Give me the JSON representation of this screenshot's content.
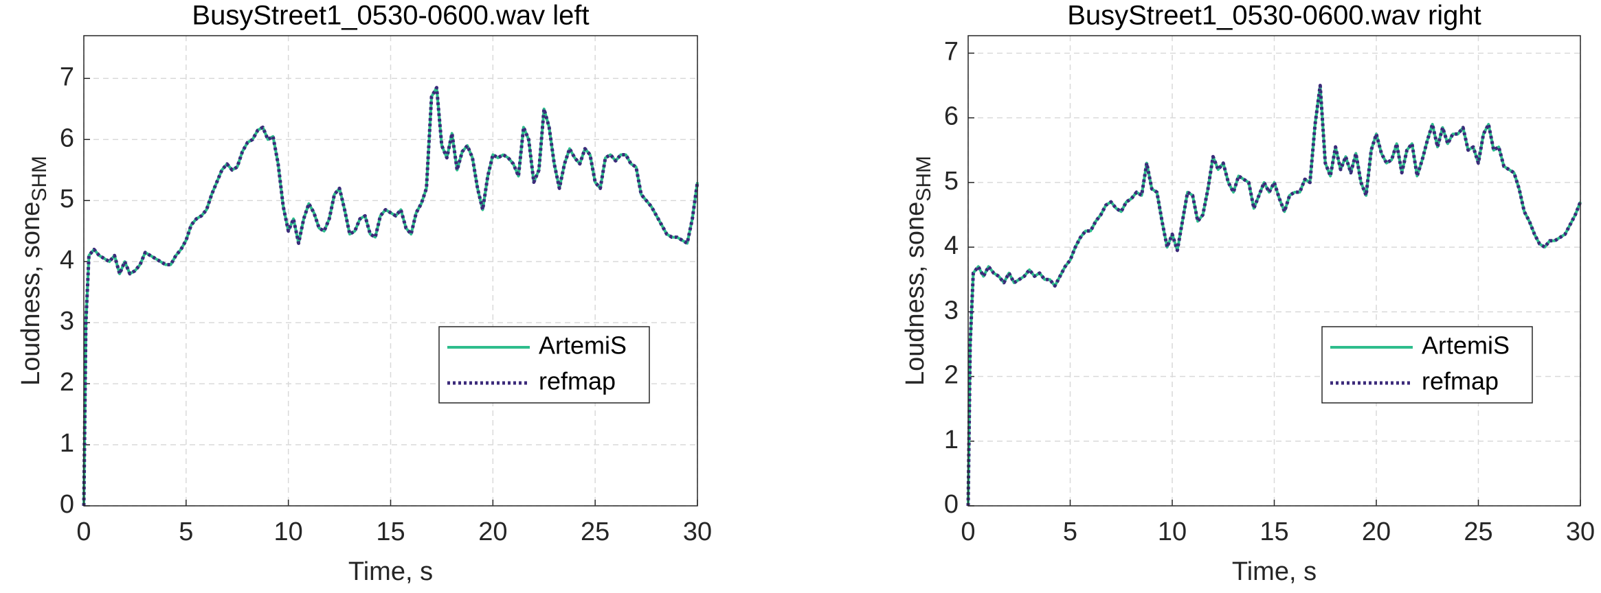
{
  "chart_data": [
    {
      "type": "line",
      "title": "BusyStreet1_0530-0600.wav left",
      "xlabel": "Time, s",
      "ylabel": "Loudness, sone",
      "ylabel_subscript": "SHM",
      "x": [
        0,
        0.1,
        0.25,
        0.5,
        0.75,
        1,
        1.25,
        1.5,
        1.75,
        2,
        2.25,
        2.5,
        2.75,
        3,
        3.25,
        3.5,
        3.75,
        4,
        4.25,
        4.5,
        4.75,
        5,
        5.25,
        5.5,
        5.75,
        6,
        6.25,
        6.5,
        6.75,
        7,
        7.25,
        7.5,
        7.75,
        8,
        8.25,
        8.5,
        8.75,
        9,
        9.25,
        9.5,
        9.75,
        10,
        10.25,
        10.5,
        10.75,
        11,
        11.25,
        11.5,
        11.75,
        12,
        12.25,
        12.5,
        12.75,
        13,
        13.25,
        13.5,
        13.75,
        14,
        14.25,
        14.5,
        14.75,
        15,
        15.25,
        15.5,
        15.75,
        16,
        16.25,
        16.5,
        16.75,
        17,
        17.25,
        17.5,
        17.75,
        18,
        18.25,
        18.5,
        18.75,
        19,
        19.25,
        19.5,
        19.75,
        20,
        20.25,
        20.5,
        20.75,
        21,
        21.25,
        21.5,
        21.75,
        22,
        22.25,
        22.5,
        22.75,
        23,
        23.25,
        23.5,
        23.75,
        24,
        24.25,
        24.5,
        24.75,
        25,
        25.25,
        25.5,
        25.75,
        26,
        26.25,
        26.5,
        26.75,
        27,
        27.25,
        27.5,
        27.75,
        28,
        28.25,
        28.5,
        28.75,
        29,
        29.25,
        29.5,
        29.75,
        30
      ],
      "series": [
        {
          "name": "ArtemiS",
          "color": "#2ebd8c",
          "line_style": "solid",
          "values": [
            0,
            3.0,
            4.1,
            4.2,
            4.1,
            4.05,
            4.0,
            4.1,
            3.8,
            4.0,
            3.8,
            3.85,
            3.95,
            4.15,
            4.1,
            4.05,
            4.0,
            3.95,
            3.95,
            4.1,
            4.2,
            4.35,
            4.6,
            4.7,
            4.75,
            4.85,
            5.1,
            5.3,
            5.5,
            5.6,
            5.5,
            5.55,
            5.8,
            5.95,
            6.0,
            6.15,
            6.2,
            6.0,
            6.05,
            5.6,
            4.9,
            4.5,
            4.7,
            4.3,
            4.7,
            4.95,
            4.8,
            4.55,
            4.5,
            4.7,
            5.1,
            5.2,
            4.85,
            4.45,
            4.5,
            4.7,
            4.75,
            4.45,
            4.4,
            4.75,
            4.85,
            4.8,
            4.75,
            4.85,
            4.55,
            4.45,
            4.8,
            4.95,
            5.2,
            6.7,
            6.85,
            5.9,
            5.7,
            6.1,
            5.5,
            5.8,
            5.9,
            5.7,
            5.2,
            4.85,
            5.4,
            5.75,
            5.7,
            5.75,
            5.7,
            5.6,
            5.4,
            6.2,
            6.0,
            5.3,
            5.5,
            6.5,
            6.2,
            5.6,
            5.2,
            5.6,
            5.85,
            5.7,
            5.6,
            5.85,
            5.75,
            5.3,
            5.2,
            5.7,
            5.75,
            5.65,
            5.75,
            5.75,
            5.6,
            5.55,
            5.1,
            5.0,
            4.9,
            4.75,
            4.6,
            4.45,
            4.4,
            4.4,
            4.35,
            4.3,
            4.7,
            5.3
          ]
        },
        {
          "name": "refmap",
          "color": "#3b2a7a",
          "line_style": "dotted",
          "values": [
            0,
            3.0,
            4.1,
            4.2,
            4.1,
            4.05,
            4.0,
            4.1,
            3.8,
            4.0,
            3.8,
            3.85,
            3.95,
            4.15,
            4.1,
            4.05,
            4.0,
            3.95,
            3.95,
            4.1,
            4.2,
            4.35,
            4.6,
            4.7,
            4.75,
            4.85,
            5.1,
            5.3,
            5.5,
            5.6,
            5.5,
            5.55,
            5.8,
            5.95,
            6.0,
            6.15,
            6.2,
            6.0,
            6.05,
            5.6,
            4.9,
            4.5,
            4.7,
            4.3,
            4.7,
            4.95,
            4.8,
            4.55,
            4.5,
            4.7,
            5.1,
            5.2,
            4.85,
            4.45,
            4.5,
            4.7,
            4.75,
            4.45,
            4.4,
            4.75,
            4.85,
            4.8,
            4.75,
            4.85,
            4.55,
            4.45,
            4.8,
            4.95,
            5.2,
            6.7,
            6.85,
            5.9,
            5.7,
            6.1,
            5.5,
            5.8,
            5.9,
            5.7,
            5.2,
            4.85,
            5.4,
            5.75,
            5.7,
            5.75,
            5.7,
            5.6,
            5.4,
            6.2,
            6.0,
            5.3,
            5.5,
            6.5,
            6.2,
            5.6,
            5.2,
            5.6,
            5.85,
            5.7,
            5.6,
            5.85,
            5.75,
            5.3,
            5.2,
            5.7,
            5.75,
            5.65,
            5.75,
            5.75,
            5.6,
            5.55,
            5.1,
            5.0,
            4.9,
            4.75,
            4.6,
            4.45,
            4.4,
            4.4,
            4.35,
            4.3,
            4.7,
            5.3
          ]
        }
      ],
      "xlim": [
        0,
        30
      ],
      "xticks": [
        0,
        5,
        10,
        15,
        20,
        25,
        30
      ],
      "ylim": [
        0,
        7.7
      ],
      "yticks": [
        0,
        1,
        2,
        3,
        4,
        5,
        6,
        7
      ],
      "grid": true,
      "legend": "lower right"
    },
    {
      "type": "line",
      "title": "BusyStreet1_0530-0600.wav right",
      "xlabel": "Time, s",
      "ylabel": "Loudness, sone",
      "ylabel_subscript": "SHM",
      "x": [
        0,
        0.1,
        0.25,
        0.5,
        0.75,
        1,
        1.25,
        1.5,
        1.75,
        2,
        2.25,
        2.5,
        2.75,
        3,
        3.25,
        3.5,
        3.75,
        4,
        4.25,
        4.5,
        4.75,
        5,
        5.25,
        5.5,
        5.75,
        6,
        6.25,
        6.5,
        6.75,
        7,
        7.25,
        7.5,
        7.75,
        8,
        8.25,
        8.5,
        8.75,
        9,
        9.25,
        9.5,
        9.75,
        10,
        10.25,
        10.5,
        10.75,
        11,
        11.25,
        11.5,
        11.75,
        12,
        12.25,
        12.5,
        12.75,
        13,
        13.25,
        13.5,
        13.75,
        14,
        14.25,
        14.5,
        14.75,
        15,
        15.25,
        15.5,
        15.75,
        16,
        16.25,
        16.5,
        16.75,
        17,
        17.25,
        17.5,
        17.75,
        18,
        18.25,
        18.5,
        18.75,
        19,
        19.25,
        19.5,
        19.75,
        20,
        20.25,
        20.5,
        20.75,
        21,
        21.25,
        21.5,
        21.75,
        22,
        22.25,
        22.5,
        22.75,
        23,
        23.25,
        23.5,
        23.75,
        24,
        24.25,
        24.5,
        24.75,
        25,
        25.25,
        25.5,
        25.75,
        26,
        26.25,
        26.5,
        26.75,
        27,
        27.25,
        27.5,
        27.75,
        28,
        28.25,
        28.5,
        28.75,
        29,
        29.25,
        29.5,
        29.75,
        30
      ],
      "series": [
        {
          "name": "ArtemiS",
          "color": "#2ebd8c",
          "line_style": "solid",
          "values": [
            0,
            2.5,
            3.6,
            3.7,
            3.55,
            3.7,
            3.6,
            3.55,
            3.45,
            3.6,
            3.45,
            3.5,
            3.55,
            3.65,
            3.55,
            3.6,
            3.5,
            3.5,
            3.4,
            3.55,
            3.7,
            3.8,
            4.0,
            4.15,
            4.25,
            4.25,
            4.4,
            4.5,
            4.65,
            4.7,
            4.6,
            4.55,
            4.7,
            4.75,
            4.85,
            4.8,
            5.3,
            4.9,
            4.85,
            4.4,
            4.0,
            4.2,
            3.95,
            4.4,
            4.85,
            4.8,
            4.4,
            4.5,
            4.9,
            5.4,
            5.2,
            5.3,
            5.0,
            4.85,
            5.1,
            5.05,
            5.0,
            4.6,
            4.8,
            5.0,
            4.85,
            5.0,
            4.75,
            4.55,
            4.8,
            4.85,
            4.85,
            5.05,
            5.0,
            5.9,
            6.5,
            5.3,
            5.1,
            5.55,
            5.2,
            5.4,
            5.15,
            5.45,
            5.0,
            4.8,
            5.5,
            5.75,
            5.45,
            5.3,
            5.35,
            5.6,
            5.15,
            5.5,
            5.6,
            5.1,
            5.35,
            5.65,
            5.9,
            5.55,
            5.85,
            5.6,
            5.75,
            5.75,
            5.85,
            5.5,
            5.55,
            5.3,
            5.75,
            5.9,
            5.5,
            5.55,
            5.25,
            5.2,
            5.15,
            4.9,
            4.55,
            4.4,
            4.2,
            4.05,
            4.0,
            4.1,
            4.1,
            4.15,
            4.2,
            4.35,
            4.5,
            4.7
          ]
        },
        {
          "name": "refmap",
          "color": "#3b2a7a",
          "line_style": "dotted",
          "values": [
            0,
            2.5,
            3.6,
            3.7,
            3.55,
            3.7,
            3.6,
            3.55,
            3.45,
            3.6,
            3.45,
            3.5,
            3.55,
            3.65,
            3.55,
            3.6,
            3.5,
            3.5,
            3.4,
            3.55,
            3.7,
            3.8,
            4.0,
            4.15,
            4.25,
            4.25,
            4.4,
            4.5,
            4.65,
            4.7,
            4.6,
            4.55,
            4.7,
            4.75,
            4.85,
            4.8,
            5.3,
            4.9,
            4.85,
            4.4,
            4.0,
            4.2,
            3.95,
            4.4,
            4.85,
            4.8,
            4.4,
            4.5,
            4.9,
            5.4,
            5.2,
            5.3,
            5.0,
            4.85,
            5.1,
            5.05,
            5.0,
            4.6,
            4.8,
            5.0,
            4.85,
            5.0,
            4.75,
            4.55,
            4.8,
            4.85,
            4.85,
            5.05,
            5.0,
            5.9,
            6.5,
            5.3,
            5.1,
            5.55,
            5.2,
            5.4,
            5.15,
            5.45,
            5.0,
            4.8,
            5.5,
            5.75,
            5.45,
            5.3,
            5.35,
            5.6,
            5.15,
            5.5,
            5.6,
            5.1,
            5.35,
            5.65,
            5.9,
            5.55,
            5.85,
            5.6,
            5.75,
            5.75,
            5.85,
            5.5,
            5.55,
            5.3,
            5.75,
            5.9,
            5.5,
            5.55,
            5.25,
            5.2,
            5.15,
            4.9,
            4.55,
            4.4,
            4.2,
            4.05,
            4.0,
            4.1,
            4.1,
            4.15,
            4.2,
            4.35,
            4.5,
            4.7
          ]
        }
      ],
      "xlim": [
        0,
        30
      ],
      "xticks": [
        0,
        5,
        10,
        15,
        20,
        25,
        30
      ],
      "ylim": [
        0,
        7.27
      ],
      "yticks": [
        0,
        1,
        2,
        3,
        4,
        5,
        6,
        7
      ],
      "grid": true,
      "legend": "lower right"
    }
  ]
}
